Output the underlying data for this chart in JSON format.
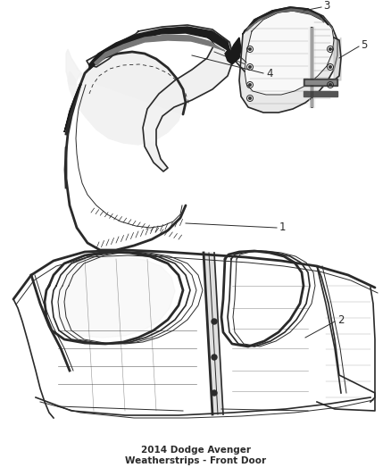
{
  "title": "2014 Dodge Avenger\nWeatherstrips - Front Door",
  "title_fontsize": 7.5,
  "bg_color": "#ffffff",
  "line_color": "#2a2a2a",
  "label_color": "#2a2a2a",
  "label_fontsize": 8.5
}
